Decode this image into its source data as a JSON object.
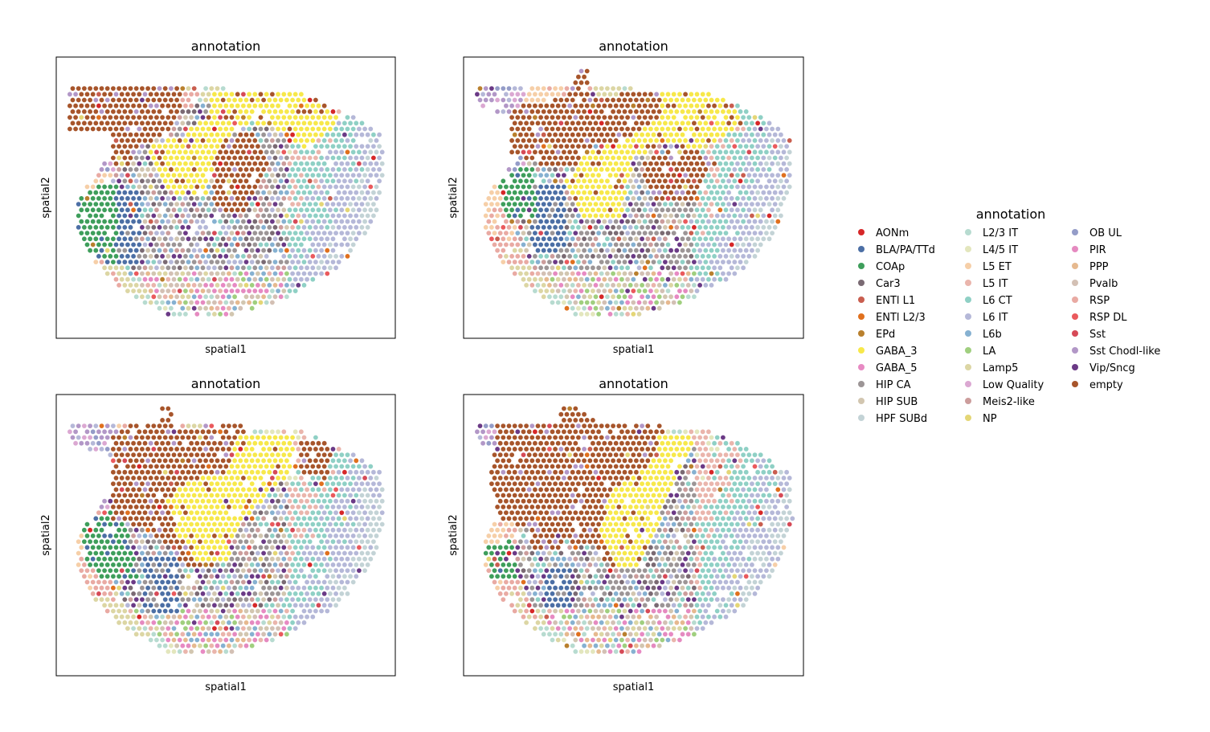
{
  "chart_data": {
    "type": "scatter",
    "panels": [
      {
        "title": "annotation",
        "xlabel": "spatial1",
        "ylabel": "spatial2"
      },
      {
        "title": "annotation",
        "xlabel": "spatial1",
        "ylabel": "spatial2"
      },
      {
        "title": "annotation",
        "xlabel": "spatial1",
        "ylabel": "spatial2"
      },
      {
        "title": "annotation",
        "xlabel": "spatial1",
        "ylabel": "spatial2"
      }
    ],
    "legend": {
      "title": "annotation",
      "placement": "right",
      "columns": 3,
      "entries": [
        {
          "label": "AONm",
          "color": "#d62728"
        },
        {
          "label": "BLA/PA/TTd",
          "color": "#4c6fa5"
        },
        {
          "label": "COAp",
          "color": "#3e9e5b"
        },
        {
          "label": "Car3",
          "color": "#7a6a73"
        },
        {
          "label": "ENTl L1",
          "color": "#c95e4f"
        },
        {
          "label": "ENTl L2/3",
          "color": "#e0701e"
        },
        {
          "label": "EPd",
          "color": "#b9802e"
        },
        {
          "label": "GABA_3",
          "color": "#f7e84a"
        },
        {
          "label": "GABA_5",
          "color": "#e78ac3"
        },
        {
          "label": "HIP CA",
          "color": "#9c9596"
        },
        {
          "label": "HIP SUB",
          "color": "#d2c6b0"
        },
        {
          "label": "HPF SUBd",
          "color": "#c3d3d6"
        },
        {
          "label": "L2/3 IT",
          "color": "#b7dbd0"
        },
        {
          "label": "L4/5 IT",
          "color": "#e3e6bd"
        },
        {
          "label": "L5 ET",
          "color": "#f6cfa8"
        },
        {
          "label": "L5 IT",
          "color": "#eab5ac"
        },
        {
          "label": "L6 CT",
          "color": "#8fd0c5"
        },
        {
          "label": "L6 IT",
          "color": "#b5b8d8"
        },
        {
          "label": "L6b",
          "color": "#86b1d1"
        },
        {
          "label": "LA",
          "color": "#a0cf7f"
        },
        {
          "label": "Lamp5",
          "color": "#dcd6a4"
        },
        {
          "label": "Low Quality",
          "color": "#dba8d2"
        },
        {
          "label": "Meis2-like",
          "color": "#cc9d9c"
        },
        {
          "label": "NP",
          "color": "#e4d676"
        },
        {
          "label": "OB UL",
          "color": "#949cc8"
        },
        {
          "label": "PIR",
          "color": "#e58ac0"
        },
        {
          "label": "PPP",
          "color": "#e6b98f"
        },
        {
          "label": "Pvalb",
          "color": "#d3c0b4"
        },
        {
          "label": "RSP",
          "color": "#e9aaa3"
        },
        {
          "label": "RSP DL",
          "color": "#ea5a5d"
        },
        {
          "label": "Sst",
          "color": "#d64a57"
        },
        {
          "label": "Sst Chodl-like",
          "color": "#b297c7"
        },
        {
          "label": "Vip/Sncg",
          "color": "#6b3a86"
        },
        {
          "label": "empty",
          "color": "#a7552b"
        }
      ]
    }
  }
}
